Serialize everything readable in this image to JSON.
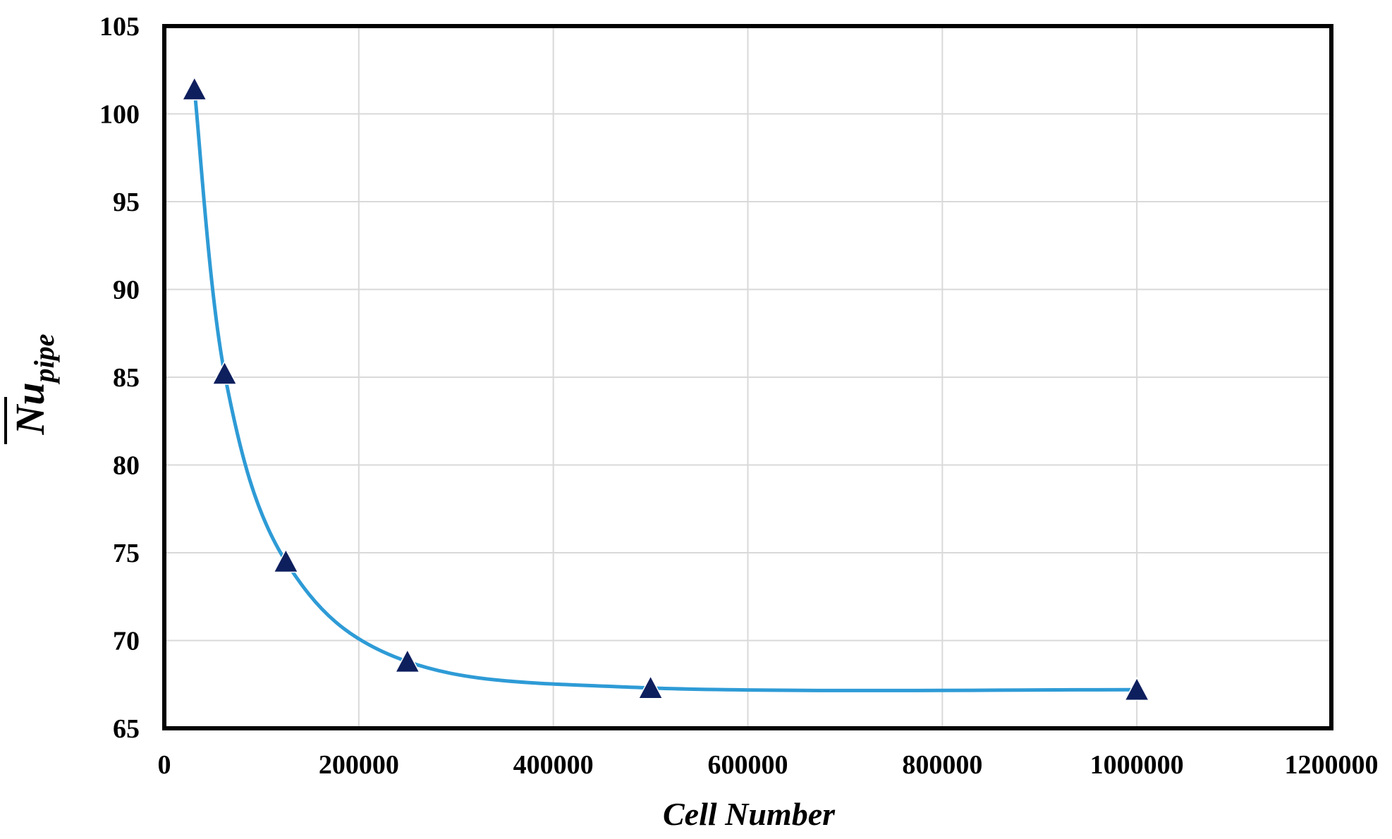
{
  "chart_data": {
    "type": "line",
    "xlabel": "Cell Number",
    "ylabel": {
      "main": "Nu",
      "subscript": "pipe"
    },
    "xlim": [
      0,
      1200000
    ],
    "ylim": [
      65,
      105
    ],
    "x_ticks": [
      "0",
      "200000",
      "400000",
      "600000",
      "800000",
      "1000000",
      "1200000"
    ],
    "y_ticks": [
      "105",
      "100",
      "95",
      "90",
      "85",
      "80",
      "75",
      "70",
      "65"
    ],
    "grid": true,
    "legend": "none",
    "series": [
      {
        "marker": "triangle",
        "line_style": "smooth",
        "line_color": "#2E9BD6",
        "marker_color": "#0E1F5E",
        "x": [
          31000,
          62000,
          125000,
          250000,
          500000,
          1000000
        ],
        "y": [
          101.4,
          85.2,
          74.5,
          68.8,
          67.3,
          67.2
        ]
      }
    ]
  }
}
